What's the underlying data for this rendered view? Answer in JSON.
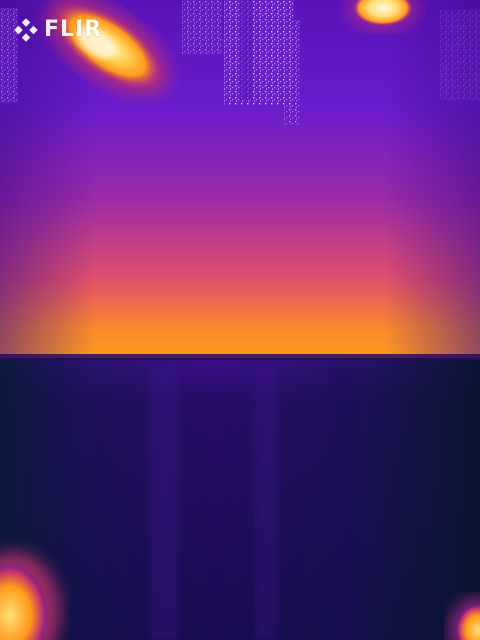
{
  "image": {
    "kind": "thermal-camera-capture",
    "palette": "iron",
    "brand": {
      "label": "FLIR",
      "icon": "flir-diamond-logo-icon"
    }
  },
  "palette_colors": {
    "cold": "#0b1030",
    "cool": "#3a0f8a",
    "mid": "#6a1fc8",
    "warm": "#d2397a",
    "hot": "#ff8a1a",
    "hottest": "#fff4c8"
  }
}
